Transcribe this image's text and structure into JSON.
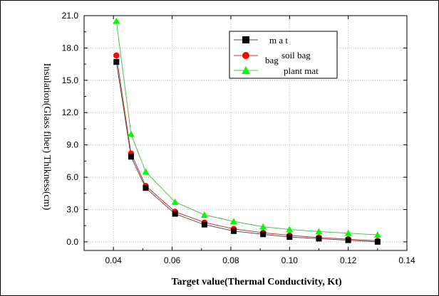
{
  "chart_data": {
    "type": "line",
    "xlabel": "Target value(Thermal Conductivity, Kt)",
    "ylabel": "Insulation(Glass fiber) Thikness(cm)",
    "xlim": [
      0.03,
      0.14
    ],
    "ylim": [
      -0.8,
      21.0
    ],
    "xticks": [
      "0.04",
      "0.06",
      "0.08",
      "0.10",
      "0.12",
      "0.14"
    ],
    "xtick_values": [
      0.04,
      0.06,
      0.08,
      0.1,
      0.12,
      0.14
    ],
    "yticks": [
      "0.0",
      "3.0",
      "6.0",
      "9.0",
      "12.0",
      "15.0",
      "18.0",
      "21.0"
    ],
    "ytick_values": [
      0,
      3,
      6,
      9,
      12,
      15,
      18,
      21
    ],
    "grid": true,
    "legend_position": "top-right",
    "x": [
      0.041,
      0.046,
      0.051,
      0.061,
      0.071,
      0.081,
      0.091,
      0.1,
      0.11,
      0.12,
      0.13
    ],
    "series": [
      {
        "name": "m a t",
        "marker": "square",
        "color": "#000000",
        "line_color": "#555555",
        "values": [
          16.7,
          7.9,
          5.0,
          2.6,
          1.6,
          1.0,
          0.7,
          0.45,
          0.3,
          0.15,
          0.0
        ]
      },
      {
        "name": "soil bag",
        "marker": "circle",
        "color": "#ff0000",
        "line_color": "#cc3333",
        "values": [
          17.3,
          8.2,
          5.2,
          2.8,
          1.8,
          1.2,
          0.85,
          0.6,
          0.4,
          0.25,
          0.1
        ]
      },
      {
        "name": "plant mat",
        "marker": "triangle",
        "color": "#00ff00",
        "line_color": "#55bb55",
        "values": [
          20.5,
          10.0,
          6.5,
          3.7,
          2.5,
          1.9,
          1.4,
          1.15,
          0.95,
          0.8,
          0.65
        ]
      }
    ],
    "legend_prefix": "bag"
  }
}
